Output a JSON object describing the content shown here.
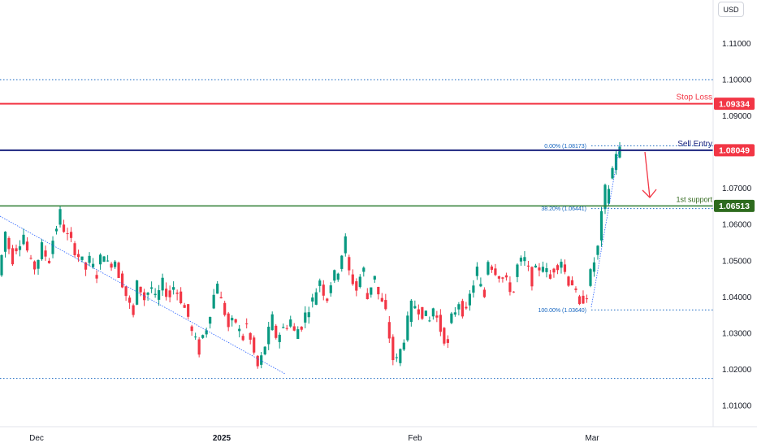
{
  "currency": "USD",
  "chart_data": {
    "type": "candlestick",
    "ylim": [
      1.0039,
      1.1267
    ],
    "y_ticks": [
      "1.11000",
      "1.10000",
      "1.09000",
      "1.07000",
      "1.06000",
      "1.05000",
      "1.04000",
      "1.03000",
      "1.02000",
      "1.01000"
    ],
    "x_labels": [
      "Dec",
      "2025",
      "Feb",
      "Mar"
    ],
    "levels": [
      {
        "id": "stop-loss",
        "label": "Stop Loss",
        "value": 1.09334,
        "price_label": "1.09334",
        "color": "#f23645",
        "style": "solid"
      },
      {
        "id": "sell-entry",
        "label": "Sell Entry",
        "value": 1.08049,
        "price_label": "1.08049",
        "color": "#1a237e",
        "label_bg": "#f23645",
        "style": "solid"
      },
      {
        "id": "first-support",
        "label": "1st support",
        "value": 1.06513,
        "price_label": "1.06513",
        "color": "#33691e",
        "style": "solid"
      },
      {
        "id": "dotted-resistance",
        "value": 1.1,
        "color": "#1565c0",
        "style": "dotted"
      },
      {
        "id": "dotted-support",
        "value": 1.0175,
        "color": "#1565c0",
        "style": "dotted"
      }
    ],
    "fib_levels": [
      {
        "label": "0.00% (1.08173)",
        "value": 1.08173
      },
      {
        "label": "38.20% (1.06441)",
        "value": 1.06441
      },
      {
        "label": "100.00% (1.03640)",
        "value": 1.0364
      }
    ],
    "candles_description": "EUR/USD daily: decline from ~1.06 (late Nov) to ~1.018 (mid Jan), range 1.02–1.055 through Feb, sharp rally in early March to ~1.082",
    "candle_path": [
      [
        1.046,
        1.057
      ],
      [
        1.057,
        1.052
      ],
      [
        1.052,
        1.054
      ],
      [
        1.054,
        1.057
      ],
      [
        1.057,
        1.051
      ],
      [
        1.051,
        1.048
      ],
      [
        1.048,
        1.053
      ],
      [
        1.053,
        1.051
      ],
      [
        1.051,
        1.056
      ],
      [
        1.056,
        1.062
      ],
      [
        1.062,
        1.058
      ],
      [
        1.058,
        1.055
      ],
      [
        1.055,
        1.052
      ],
      [
        1.052,
        1.049
      ],
      [
        1.049,
        1.05
      ],
      [
        1.05,
        1.047
      ],
      [
        1.047,
        1.051
      ],
      [
        1.051,
        1.049
      ],
      [
        1.049,
        1.05
      ],
      [
        1.05,
        1.046
      ],
      [
        1.046,
        1.041
      ],
      [
        1.041,
        1.036
      ],
      [
        1.036,
        1.044
      ],
      [
        1.044,
        1.04
      ],
      [
        1.04,
        1.042
      ],
      [
        1.042,
        1.039
      ],
      [
        1.039,
        1.043
      ],
      [
        1.043,
        1.041
      ],
      [
        1.041,
        1.043
      ],
      [
        1.043,
        1.04
      ],
      [
        1.04,
        1.036
      ],
      [
        1.036,
        1.03
      ],
      [
        1.03,
        1.026
      ],
      [
        1.026,
        1.03
      ],
      [
        1.03,
        1.036
      ],
      [
        1.036,
        1.043
      ],
      [
        1.043,
        1.038
      ],
      [
        1.038,
        1.032
      ],
      [
        1.032,
        1.033
      ],
      [
        1.033,
        1.03
      ],
      [
        1.03,
        1.032
      ],
      [
        1.032,
        1.026
      ],
      [
        1.026,
        1.02
      ],
      [
        1.02,
        1.026
      ],
      [
        1.026,
        1.032
      ],
      [
        1.032,
        1.029
      ],
      [
        1.029,
        1.031
      ],
      [
        1.031,
        1.033
      ],
      [
        1.033,
        1.03
      ],
      [
        1.03,
        1.032
      ],
      [
        1.032,
        1.036
      ],
      [
        1.036,
        1.039
      ],
      [
        1.039,
        1.044
      ],
      [
        1.044,
        1.041
      ],
      [
        1.041,
        1.044
      ],
      [
        1.044,
        1.047
      ],
      [
        1.047,
        1.053
      ],
      [
        1.053,
        1.047
      ],
      [
        1.047,
        1.043
      ],
      [
        1.043,
        1.046
      ],
      [
        1.046,
        1.04
      ],
      [
        1.04,
        1.045
      ],
      [
        1.045,
        1.04
      ],
      [
        1.04,
        1.036
      ],
      [
        1.036,
        1.026
      ],
      [
        1.026,
        1.022
      ],
      [
        1.022,
        1.028
      ],
      [
        1.028,
        1.035
      ],
      [
        1.035,
        1.038
      ],
      [
        1.038,
        1.036
      ],
      [
        1.036,
        1.034
      ],
      [
        1.034,
        1.037
      ],
      [
        1.037,
        1.032
      ],
      [
        1.032,
        1.028
      ],
      [
        1.028,
        1.034
      ],
      [
        1.034,
        1.038
      ],
      [
        1.038,
        1.036
      ],
      [
        1.036,
        1.04
      ],
      [
        1.04,
        1.046
      ],
      [
        1.046,
        1.042
      ],
      [
        1.042,
        1.05
      ],
      [
        1.05,
        1.048
      ],
      [
        1.048,
        1.046
      ],
      [
        1.046,
        1.044
      ],
      [
        1.044,
        1.042
      ],
      [
        1.042,
        1.049
      ],
      [
        1.049,
        1.05
      ],
      [
        1.05,
        1.046
      ],
      [
        1.046,
        1.047
      ],
      [
        1.047,
        1.049
      ],
      [
        1.049,
        1.046
      ],
      [
        1.046,
        1.048
      ],
      [
        1.048,
        1.05
      ],
      [
        1.05,
        1.046
      ],
      [
        1.046,
        1.044
      ],
      [
        1.044,
        1.038
      ],
      [
        1.038,
        1.04
      ],
      [
        1.04,
        1.046
      ],
      [
        1.046,
        1.052
      ],
      [
        1.052,
        1.064
      ],
      [
        1.064,
        1.07
      ],
      [
        1.07,
        1.078
      ],
      [
        1.078,
        1.082
      ]
    ]
  }
}
